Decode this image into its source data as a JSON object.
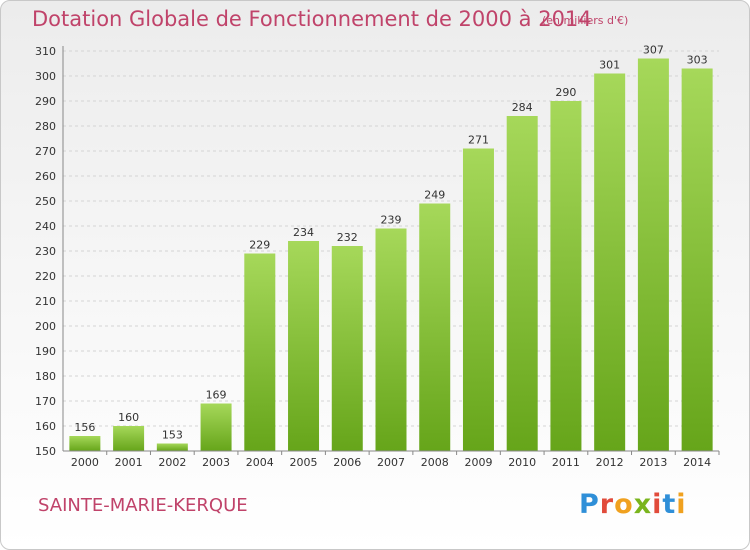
{
  "title": "Dotation Globale de Fonctionnement de 2000 à 2014",
  "unit_note": "(en milliers d'€)",
  "commune": "SAINTE-MARIE-KERQUE",
  "logo": {
    "text": "Proxiti",
    "letters": [
      {
        "ch": "P",
        "color": "#2f8fd8"
      },
      {
        "ch": "r",
        "color": "#e14b3b"
      },
      {
        "ch": "o",
        "color": "#f0a11f"
      },
      {
        "ch": "x",
        "color": "#7ab51d"
      },
      {
        "ch": "i",
        "color": "#e14b3b"
      },
      {
        "ch": "t",
        "color": "#2f8fd8"
      },
      {
        "ch": "i",
        "color": "#f0a11f"
      }
    ]
  },
  "colors": {
    "bar_top": "#a6d85a",
    "bar_bottom": "#66a51a",
    "title": "#c0436a",
    "grid": "#d4d4d4",
    "axis_text": "#333333"
  },
  "chart_data": {
    "type": "bar",
    "title": "Dotation Globale de Fonctionnement de 2000 à 2014",
    "xlabel": "",
    "ylabel": "",
    "categories": [
      "2000",
      "2001",
      "2002",
      "2003",
      "2004",
      "2005",
      "2006",
      "2007",
      "2008",
      "2009",
      "2010",
      "2011",
      "2012",
      "2013",
      "2014"
    ],
    "values": [
      156,
      160,
      153,
      169,
      229,
      234,
      232,
      239,
      249,
      271,
      284,
      290,
      301,
      307,
      303
    ],
    "ylim": [
      150,
      310
    ],
    "yticks": [
      150,
      160,
      170,
      180,
      190,
      200,
      210,
      220,
      230,
      240,
      250,
      260,
      270,
      280,
      290,
      300,
      310
    ],
    "grid": true,
    "data_labels": true
  }
}
